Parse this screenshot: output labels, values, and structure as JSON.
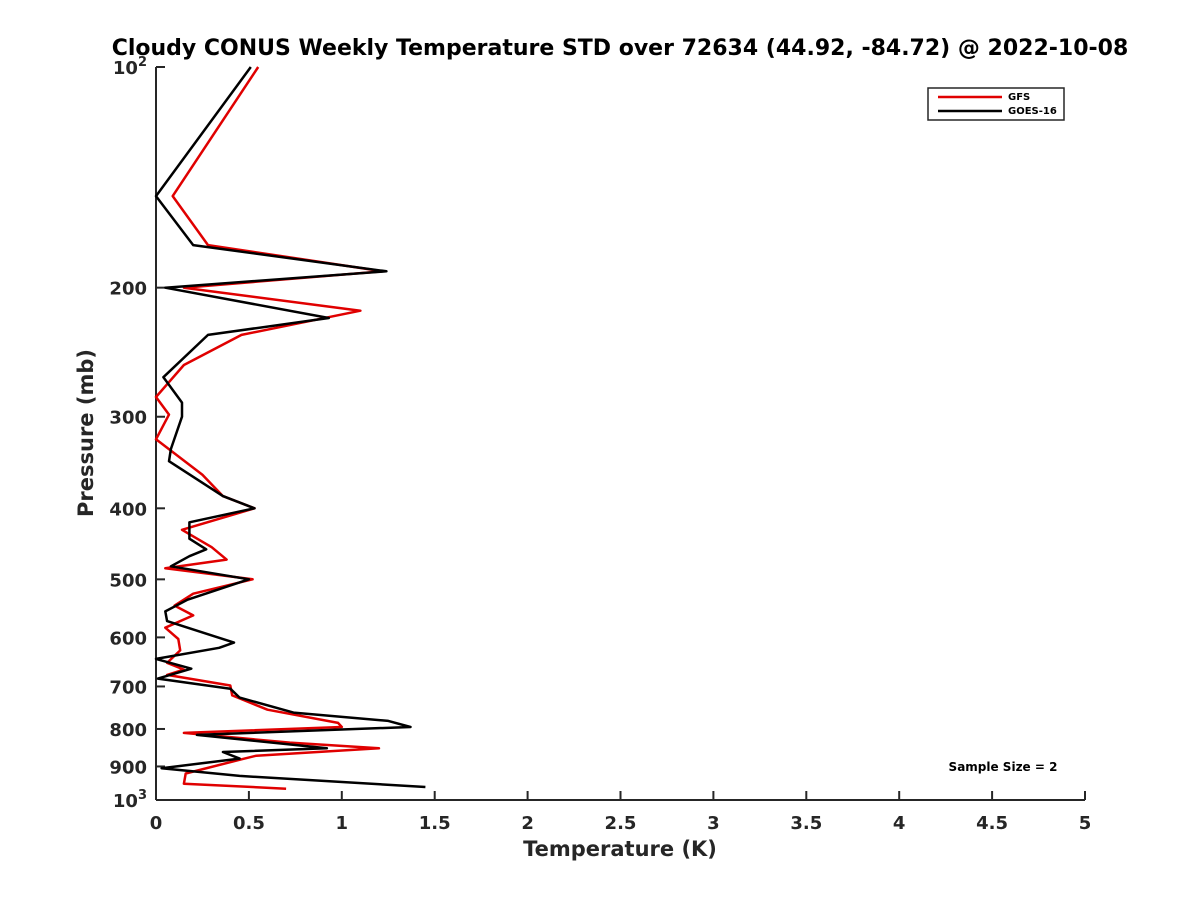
{
  "chart_data": {
    "type": "line",
    "title": "Cloudy CONUS Weekly Temperature STD over 72634 (44.92, -84.72) @ 2022-10-08",
    "xlabel": "Temperature (K)",
    "ylabel": "Pressure (mb)",
    "xlim": [
      0,
      5
    ],
    "ylim": [
      100,
      1000
    ],
    "y_scale": "log",
    "y_reversed": true,
    "x_ticks": [
      "0",
      "0.5",
      "1",
      "1.5",
      "2",
      "2.5",
      "3",
      "3.5",
      "4",
      "4.5",
      "5"
    ],
    "x_tick_values": [
      0,
      0.5,
      1,
      1.5,
      2,
      2.5,
      3,
      3.5,
      4,
      4.5,
      5
    ],
    "y_ticks": [
      {
        "value": 100,
        "base": "10",
        "exp": "2"
      },
      {
        "value": 200,
        "label": "200"
      },
      {
        "value": 300,
        "label": "300"
      },
      {
        "value": 400,
        "label": "400"
      },
      {
        "value": 500,
        "label": "500"
      },
      {
        "value": 600,
        "label": "600"
      },
      {
        "value": 700,
        "label": "700"
      },
      {
        "value": 800,
        "label": "800"
      },
      {
        "value": 900,
        "label": "900"
      },
      {
        "value": 1000,
        "base": "10",
        "exp": "3"
      }
    ],
    "legend_position": "top-right",
    "grid": false,
    "annotation": "Sample Size = 2",
    "series": [
      {
        "name": "GFS",
        "color": "#e00000",
        "points": [
          [
            0.55,
            100
          ],
          [
            0.09,
            150
          ],
          [
            0.28,
            175
          ],
          [
            1.22,
            190
          ],
          [
            0.15,
            200
          ],
          [
            1.1,
            215
          ],
          [
            0.46,
            232
          ],
          [
            0.15,
            255
          ],
          [
            0.0,
            282
          ],
          [
            0.07,
            298
          ],
          [
            0.0,
            322
          ],
          [
            0.25,
            360
          ],
          [
            0.36,
            385
          ],
          [
            0.53,
            400
          ],
          [
            0.14,
            428
          ],
          [
            0.3,
            452
          ],
          [
            0.38,
            470
          ],
          [
            0.05,
            483
          ],
          [
            0.52,
            500
          ],
          [
            0.2,
            523
          ],
          [
            0.1,
            543
          ],
          [
            0.2,
            560
          ],
          [
            0.05,
            582
          ],
          [
            0.12,
            603
          ],
          [
            0.13,
            625
          ],
          [
            0.06,
            650
          ],
          [
            0.15,
            664
          ],
          [
            0.06,
            675
          ],
          [
            0.4,
            698
          ],
          [
            0.41,
            720
          ],
          [
            0.6,
            753
          ],
          [
            0.98,
            785
          ],
          [
            1.0,
            795
          ],
          [
            0.15,
            810
          ],
          [
            0.72,
            835
          ],
          [
            1.2,
            850
          ],
          [
            0.54,
            870
          ],
          [
            0.46,
            880
          ],
          [
            0.16,
            920
          ],
          [
            0.15,
            950
          ],
          [
            0.7,
            965
          ]
        ]
      },
      {
        "name": "GOES-16",
        "color": "#000000",
        "points": [
          [
            0.51,
            100
          ],
          [
            0.0,
            150
          ],
          [
            0.2,
            175
          ],
          [
            1.24,
            190
          ],
          [
            0.05,
            200
          ],
          [
            0.93,
            220
          ],
          [
            0.28,
            232
          ],
          [
            0.04,
            265
          ],
          [
            0.14,
            287
          ],
          [
            0.14,
            300
          ],
          [
            0.08,
            332
          ],
          [
            0.07,
            345
          ],
          [
            0.36,
            385
          ],
          [
            0.53,
            400
          ],
          [
            0.18,
            418
          ],
          [
            0.18,
            440
          ],
          [
            0.27,
            455
          ],
          [
            0.18,
            465
          ],
          [
            0.08,
            480
          ],
          [
            0.5,
            500
          ],
          [
            0.17,
            533
          ],
          [
            0.05,
            553
          ],
          [
            0.06,
            570
          ],
          [
            0.42,
            610
          ],
          [
            0.34,
            620
          ],
          [
            0.0,
            642
          ],
          [
            0.19,
            662
          ],
          [
            0.01,
            683
          ],
          [
            0.4,
            705
          ],
          [
            0.45,
            725
          ],
          [
            0.74,
            760
          ],
          [
            1.25,
            780
          ],
          [
            1.37,
            795
          ],
          [
            0.22,
            815
          ],
          [
            0.92,
            850
          ],
          [
            0.36,
            860
          ],
          [
            0.45,
            878
          ],
          [
            0.03,
            905
          ],
          [
            0.45,
            927
          ],
          [
            1.45,
            960
          ]
        ]
      }
    ]
  }
}
